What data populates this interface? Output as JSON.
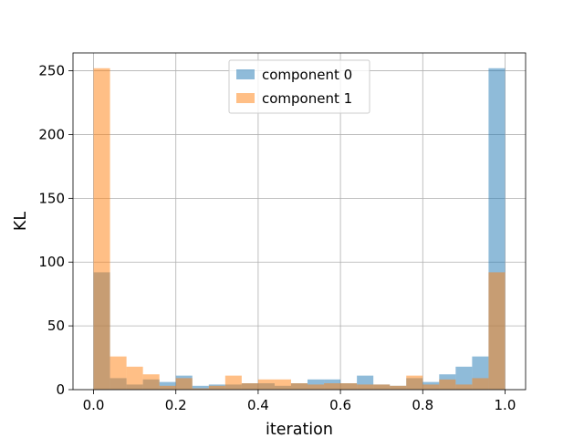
{
  "chart_data": {
    "type": "bar",
    "title": "",
    "xlabel": "iteration",
    "ylabel": "KL",
    "xlim": [
      -0.05,
      1.05
    ],
    "ylim": [
      0,
      264
    ],
    "xticks": [
      0.0,
      0.2,
      0.4,
      0.6,
      0.8,
      1.0
    ],
    "xtick_labels": [
      "0.0",
      "0.2",
      "0.4",
      "0.6",
      "0.8",
      "1.0"
    ],
    "yticks": [
      0,
      50,
      100,
      150,
      200,
      250
    ],
    "ytick_labels": [
      "0",
      "50",
      "100",
      "150",
      "200",
      "250"
    ],
    "grid": true,
    "legend_position": "top-center",
    "bin_edges": [
      0.0,
      0.04,
      0.08,
      0.12,
      0.16,
      0.2,
      0.24,
      0.28,
      0.32,
      0.36,
      0.4,
      0.44,
      0.48,
      0.52,
      0.56,
      0.6,
      0.64,
      0.68,
      0.72,
      0.76,
      0.8,
      0.84,
      0.88,
      0.92,
      0.96,
      1.0
    ],
    "series": [
      {
        "name": "component 0",
        "color": "#1f77b4",
        "values": [
          92,
          9,
          4,
          8,
          6,
          11,
          3,
          4,
          4,
          5,
          5,
          3,
          5,
          8,
          8,
          5,
          11,
          4,
          3,
          9,
          6,
          12,
          18,
          26,
          252
        ]
      },
      {
        "name": "component 1",
        "color": "#ff7f0e",
        "values": [
          252,
          26,
          18,
          12,
          3,
          9,
          1,
          3,
          11,
          5,
          8,
          8,
          5,
          4,
          5,
          5,
          4,
          4,
          3,
          11,
          4,
          8,
          4,
          9,
          92
        ]
      }
    ]
  }
}
